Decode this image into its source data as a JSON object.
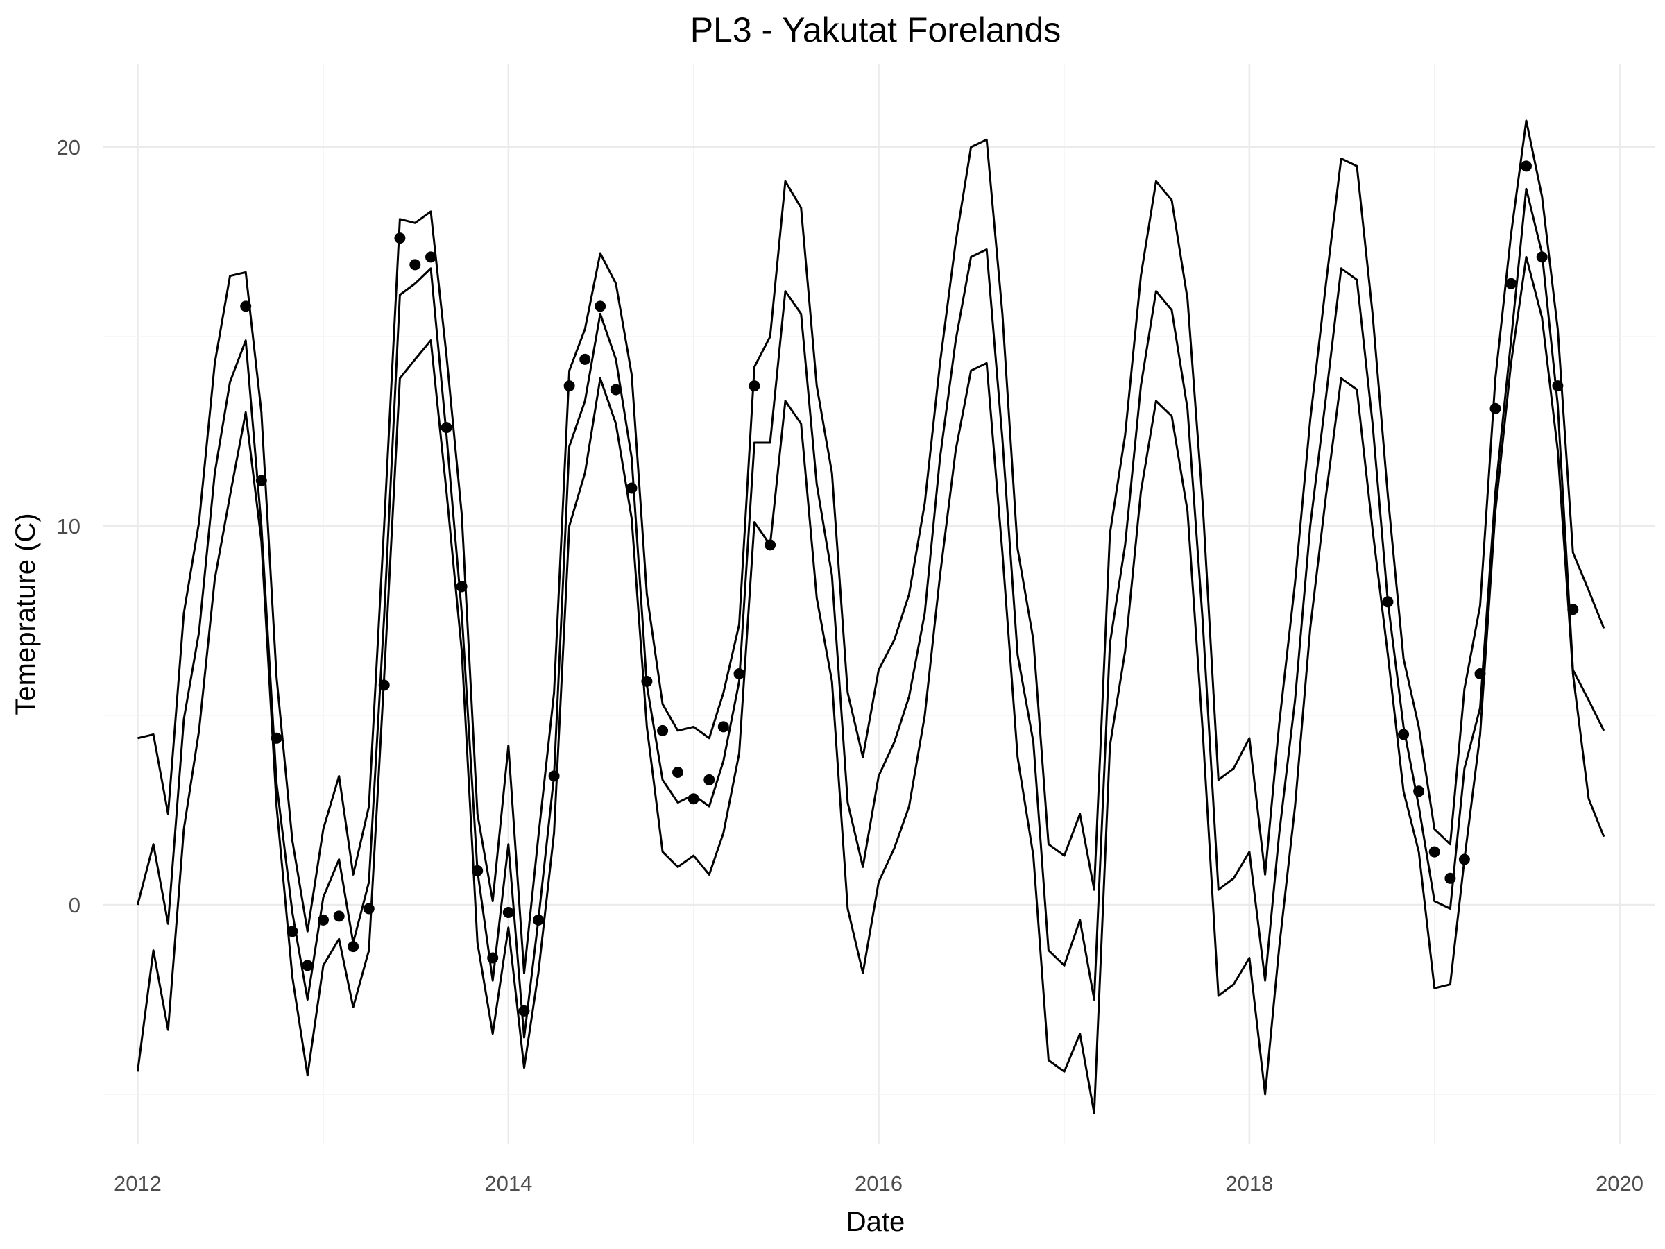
{
  "chart_data": {
    "type": "line",
    "title": "PL3 - Yakutat Forelands",
    "xlabel": "Date",
    "ylabel": "Temeprature (C)",
    "x_ticks": [
      "2012",
      "2014",
      "2016",
      "2018",
      "2020"
    ],
    "y_ticks": [
      0,
      10,
      20
    ],
    "xlim": [
      "2011-10-24",
      "2020-03-10"
    ],
    "ylim": [
      -6.3,
      22.2
    ],
    "grid": true,
    "legend": "none",
    "x": [
      "2012-01",
      "2012-02",
      "2012-03",
      "2012-04",
      "2012-05",
      "2012-06",
      "2012-07",
      "2012-08",
      "2012-09",
      "2012-10",
      "2012-11",
      "2012-12",
      "2013-01",
      "2013-02",
      "2013-03",
      "2013-04",
      "2013-05",
      "2013-06",
      "2013-07",
      "2013-08",
      "2013-09",
      "2013-10",
      "2013-11",
      "2013-12",
      "2014-01",
      "2014-02",
      "2014-03",
      "2014-04",
      "2014-05",
      "2014-06",
      "2014-07",
      "2014-08",
      "2014-09",
      "2014-10",
      "2014-11",
      "2014-12",
      "2015-01",
      "2015-02",
      "2015-03",
      "2015-04",
      "2015-05",
      "2015-06",
      "2015-07",
      "2015-08",
      "2015-09",
      "2015-10",
      "2015-11",
      "2015-12",
      "2016-01",
      "2016-02",
      "2016-03",
      "2016-04",
      "2016-05",
      "2016-06",
      "2016-07",
      "2016-08",
      "2016-09",
      "2016-10",
      "2016-11",
      "2016-12",
      "2017-01",
      "2017-02",
      "2017-03",
      "2017-04",
      "2017-05",
      "2017-06",
      "2017-07",
      "2017-08",
      "2017-09",
      "2017-10",
      "2017-11",
      "2017-12",
      "2018-01",
      "2018-02",
      "2018-03",
      "2018-04",
      "2018-05",
      "2018-06",
      "2018-07",
      "2018-08",
      "2018-09",
      "2018-10",
      "2018-11",
      "2018-12",
      "2019-01",
      "2019-02",
      "2019-03",
      "2019-04",
      "2019-05",
      "2019-06",
      "2019-07",
      "2019-08",
      "2019-09",
      "2019-10",
      "2019-11",
      "2019-12"
    ],
    "series": [
      {
        "values": [
          4.4,
          4.5,
          2.4,
          7.7,
          10.1,
          14.3,
          16.6,
          16.7,
          13.0,
          6.0,
          1.7,
          -0.7,
          2.0,
          3.4,
          0.8,
          2.6,
          10.0,
          18.1,
          18.0,
          18.3,
          14.5,
          10.3,
          2.4,
          0.1,
          4.2,
          -1.8,
          1.8,
          5.6,
          14.1,
          15.2,
          17.2,
          16.4,
          14.0,
          8.2,
          5.3,
          4.6,
          4.7,
          4.4,
          5.6,
          7.4,
          14.2,
          15.0,
          19.1,
          18.4,
          13.7,
          11.4,
          5.6,
          3.9,
          6.2,
          7.0,
          8.2,
          10.6,
          14.3,
          17.5,
          20.0,
          20.2,
          15.6,
          9.4,
          7.0,
          1.6,
          1.3,
          2.4,
          0.4,
          9.8,
          12.4,
          16.6,
          19.1,
          18.6,
          16.0,
          10.6,
          3.3,
          3.6,
          4.4,
          0.8,
          4.8,
          8.5,
          12.8,
          16.4,
          19.7,
          19.5,
          15.6,
          10.8,
          6.5,
          4.7,
          2.0,
          1.6,
          5.7,
          7.9,
          13.9,
          17.7,
          20.7,
          18.7,
          15.2,
          9.3,
          8.3,
          7.3
        ]
      },
      {
        "values": [
          0.0,
          1.6,
          -0.5,
          4.9,
          7.2,
          11.4,
          13.8,
          14.9,
          10.0,
          3.2,
          -0.2,
          -2.5,
          0.2,
          1.2,
          -1.0,
          0.6,
          7.6,
          16.1,
          16.4,
          16.8,
          12.4,
          7.7,
          0.9,
          -2.0,
          1.6,
          -3.5,
          -0.4,
          3.4,
          12.1,
          13.3,
          15.6,
          14.4,
          11.8,
          5.8,
          3.3,
          2.7,
          2.9,
          2.6,
          3.8,
          5.9,
          12.2,
          12.2,
          16.2,
          15.6,
          11.1,
          8.7,
          2.7,
          1.0,
          3.4,
          4.3,
          5.5,
          7.7,
          11.8,
          14.9,
          17.1,
          17.3,
          12.3,
          6.6,
          4.3,
          -1.2,
          -1.6,
          -0.4,
          -2.5,
          6.9,
          9.5,
          13.7,
          16.2,
          15.7,
          13.1,
          7.5,
          0.4,
          0.7,
          1.4,
          -2.0,
          1.9,
          5.4,
          10.0,
          13.4,
          16.8,
          16.5,
          12.7,
          8.0,
          4.7,
          2.6,
          0.1,
          -0.1,
          3.6,
          5.2,
          10.9,
          14.9,
          18.9,
          17.2,
          13.2,
          6.2,
          5.4,
          4.6
        ]
      },
      {
        "values": [
          -4.4,
          -1.2,
          -3.3,
          2.0,
          4.6,
          8.6,
          10.8,
          13.0,
          9.6,
          2.6,
          -1.9,
          -4.5,
          -1.6,
          -0.9,
          -2.7,
          -1.2,
          6.0,
          13.9,
          14.4,
          14.9,
          10.9,
          6.7,
          -1.0,
          -3.4,
          -0.6,
          -4.3,
          -1.8,
          1.9,
          10.0,
          11.4,
          13.9,
          12.7,
          10.2,
          4.7,
          1.4,
          1.0,
          1.3,
          0.8,
          1.9,
          4.0,
          10.1,
          9.5,
          13.3,
          12.7,
          8.1,
          5.9,
          -0.1,
          -1.8,
          0.6,
          1.5,
          2.6,
          5.0,
          8.7,
          12.0,
          14.1,
          14.3,
          9.3,
          3.9,
          1.3,
          -4.1,
          -4.4,
          -3.4,
          -5.5,
          4.2,
          6.7,
          10.9,
          13.3,
          12.9,
          10.4,
          4.6,
          -2.4,
          -2.1,
          -1.4,
          -5.0,
          -1.1,
          2.6,
          7.3,
          10.8,
          13.9,
          13.6,
          9.9,
          6.6,
          3.0,
          1.4,
          -2.2,
          -2.1,
          1.2,
          4.5,
          10.4,
          14.3,
          17.1,
          15.5,
          12.0,
          6.1,
          2.8,
          1.8
        ]
      }
    ],
    "points": [
      {
        "x": "2012-08",
        "y": 15.8
      },
      {
        "x": "2012-09",
        "y": 11.2
      },
      {
        "x": "2012-10",
        "y": 4.4
      },
      {
        "x": "2012-11",
        "y": -0.7
      },
      {
        "x": "2012-12",
        "y": -1.6
      },
      {
        "x": "2013-01",
        "y": -0.4
      },
      {
        "x": "2013-02",
        "y": -0.3
      },
      {
        "x": "2013-03",
        "y": -1.1
      },
      {
        "x": "2013-04",
        "y": -0.1
      },
      {
        "x": "2013-05",
        "y": 5.8
      },
      {
        "x": "2013-06",
        "y": 17.6
      },
      {
        "x": "2013-07",
        "y": 16.9
      },
      {
        "x": "2013-08",
        "y": 17.1
      },
      {
        "x": "2013-09",
        "y": 12.6
      },
      {
        "x": "2013-10",
        "y": 8.4
      },
      {
        "x": "2013-11",
        "y": 0.9
      },
      {
        "x": "2013-12",
        "y": -1.4
      },
      {
        "x": "2014-01",
        "y": -0.2
      },
      {
        "x": "2014-02",
        "y": -2.8
      },
      {
        "x": "2014-03",
        "y": -0.4
      },
      {
        "x": "2014-04",
        "y": 3.4
      },
      {
        "x": "2014-05",
        "y": 13.7
      },
      {
        "x": "2014-06",
        "y": 14.4
      },
      {
        "x": "2014-07",
        "y": 15.8
      },
      {
        "x": "2014-08",
        "y": 13.6
      },
      {
        "x": "2014-09",
        "y": 11.0
      },
      {
        "x": "2014-10",
        "y": 5.9
      },
      {
        "x": "2014-11",
        "y": 4.6
      },
      {
        "x": "2014-12",
        "y": 3.5
      },
      {
        "x": "2015-01",
        "y": 2.8
      },
      {
        "x": "2015-02",
        "y": 3.3
      },
      {
        "x": "2015-03",
        "y": 4.7
      },
      {
        "x": "2015-04",
        "y": 6.1
      },
      {
        "x": "2015-05",
        "y": 13.7
      },
      {
        "x": "2015-06",
        "y": 9.5
      },
      {
        "x": "2018-10",
        "y": 8.0
      },
      {
        "x": "2018-11",
        "y": 4.5
      },
      {
        "x": "2018-12",
        "y": 3.0
      },
      {
        "x": "2019-01",
        "y": 1.4
      },
      {
        "x": "2019-02",
        "y": 0.7
      },
      {
        "x": "2019-03",
        "y": 1.2
      },
      {
        "x": "2019-04",
        "y": 6.1
      },
      {
        "x": "2019-05",
        "y": 13.1
      },
      {
        "x": "2019-06",
        "y": 16.4
      },
      {
        "x": "2019-07",
        "y": 19.5
      },
      {
        "x": "2019-08",
        "y": 17.1
      },
      {
        "x": "2019-09",
        "y": 13.7
      },
      {
        "x": "2019-10",
        "y": 7.8
      }
    ]
  }
}
